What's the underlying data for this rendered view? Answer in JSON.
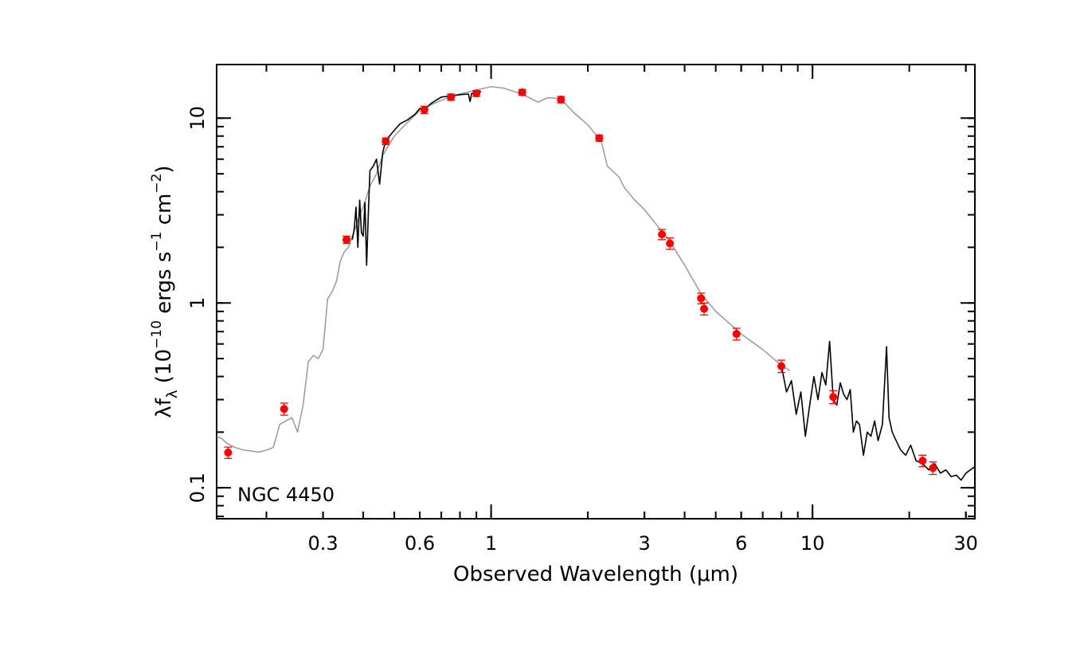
{
  "chart_data": {
    "type": "scatter",
    "title": "",
    "annotation": "NGC 4450",
    "xlabel": "Observed Wavelength (μm)",
    "ylabel": "λfλ (10⁻¹⁰ ergs s⁻¹ cm⁻²)",
    "ylabel_parts": {
      "lam": "λf",
      "sub": "λ",
      "open": " (10",
      "exp1": "−10",
      "mid": " ergs s",
      "exp2": "−1",
      "mid2": " cm",
      "exp3": "−2",
      "close": ")"
    },
    "xscale": "log",
    "yscale": "log",
    "xlim": [
      0.14,
      32
    ],
    "ylim": [
      0.068,
      19.5
    ],
    "x_ticks": [
      {
        "value": 0.3,
        "label": "0.3"
      },
      {
        "value": 0.6,
        "label": "0.6"
      },
      {
        "value": 1,
        "label": "1"
      },
      {
        "value": 3,
        "label": "3"
      },
      {
        "value": 6,
        "label": "6"
      },
      {
        "value": 10,
        "label": "10"
      },
      {
        "value": 30,
        "label": "30"
      }
    ],
    "y_ticks": [
      {
        "value": 0.1,
        "label": "0.1"
      },
      {
        "value": 1,
        "label": "1"
      },
      {
        "value": 10,
        "label": "10"
      }
    ],
    "grid": false,
    "colors": {
      "photometry": "#ff0000",
      "model": "#999999",
      "spectrum": "#000000"
    },
    "series": [
      {
        "kind": "photometry",
        "style": "points-with-errorbars",
        "points": [
          {
            "x": 0.152,
            "y": 0.155,
            "err": 0.011
          },
          {
            "x": 0.227,
            "y": 0.267,
            "err": 0.02
          },
          {
            "x": 0.355,
            "y": 2.2,
            "err": 0.1
          },
          {
            "x": 0.47,
            "y": 7.5,
            "err": 0.3
          },
          {
            "x": 0.62,
            "y": 11.1,
            "err": 0.5
          },
          {
            "x": 0.75,
            "y": 13.0,
            "err": 0.5
          },
          {
            "x": 0.9,
            "y": 13.6,
            "err": 0.5
          },
          {
            "x": 1.25,
            "y": 13.8,
            "err": 0.5
          },
          {
            "x": 1.65,
            "y": 12.6,
            "err": 0.5
          },
          {
            "x": 2.17,
            "y": 7.8,
            "err": 0.3
          },
          {
            "x": 3.4,
            "y": 2.35,
            "err": 0.15
          },
          {
            "x": 3.6,
            "y": 2.1,
            "err": 0.15
          },
          {
            "x": 4.5,
            "y": 1.06,
            "err": 0.07
          },
          {
            "x": 4.6,
            "y": 0.93,
            "err": 0.07
          },
          {
            "x": 5.8,
            "y": 0.68,
            "err": 0.05
          },
          {
            "x": 8.0,
            "y": 0.455,
            "err": 0.035
          },
          {
            "x": 11.6,
            "y": 0.31,
            "err": 0.025
          },
          {
            "x": 22.0,
            "y": 0.14,
            "err": 0.01
          },
          {
            "x": 23.7,
            "y": 0.128,
            "err": 0.01
          }
        ]
      },
      {
        "kind": "model",
        "style": "line",
        "points": [
          [
            0.14,
            0.19
          ],
          [
            0.145,
            0.185
          ],
          [
            0.15,
            0.175
          ],
          [
            0.16,
            0.165
          ],
          [
            0.17,
            0.16
          ],
          [
            0.18,
            0.158
          ],
          [
            0.19,
            0.156
          ],
          [
            0.2,
            0.16
          ],
          [
            0.21,
            0.165
          ],
          [
            0.22,
            0.22
          ],
          [
            0.23,
            0.23
          ],
          [
            0.24,
            0.24
          ],
          [
            0.25,
            0.2
          ],
          [
            0.26,
            0.28
          ],
          [
            0.27,
            0.48
          ],
          [
            0.28,
            0.52
          ],
          [
            0.29,
            0.5
          ],
          [
            0.3,
            0.56
          ],
          [
            0.31,
            1.05
          ],
          [
            0.32,
            1.15
          ],
          [
            0.33,
            1.3
          ],
          [
            0.34,
            1.7
          ],
          [
            0.35,
            1.9
          ],
          [
            0.36,
            2.0
          ],
          [
            0.37,
            2.3
          ],
          [
            0.38,
            2.6
          ],
          [
            0.39,
            3.0
          ],
          [
            0.4,
            3.3
          ],
          [
            0.42,
            4.3
          ],
          [
            0.44,
            5.0
          ],
          [
            0.46,
            6.3
          ],
          [
            0.5,
            8.0
          ],
          [
            0.55,
            9.5
          ],
          [
            0.6,
            11.0
          ],
          [
            0.65,
            11.8
          ],
          [
            0.7,
            12.5
          ],
          [
            0.8,
            13.5
          ],
          [
            0.9,
            14.2
          ],
          [
            1.0,
            14.8
          ],
          [
            1.1,
            14.5
          ],
          [
            1.2,
            13.8
          ],
          [
            1.3,
            13.0
          ],
          [
            1.4,
            12.2
          ],
          [
            1.5,
            12.9
          ],
          [
            1.6,
            12.8
          ],
          [
            1.7,
            12.0
          ],
          [
            1.8,
            10.8
          ],
          [
            2.0,
            9.2
          ],
          [
            2.2,
            7.5
          ],
          [
            2.3,
            5.5
          ],
          [
            2.5,
            4.8
          ],
          [
            2.6,
            4.2
          ],
          [
            2.8,
            3.6
          ],
          [
            3.0,
            3.2
          ],
          [
            3.3,
            2.6
          ],
          [
            3.6,
            2.15
          ],
          [
            4.0,
            1.6
          ],
          [
            4.5,
            1.12
          ],
          [
            5.0,
            0.9
          ],
          [
            6.0,
            0.68
          ],
          [
            7.0,
            0.56
          ],
          [
            8.0,
            0.46
          ],
          [
            8.5,
            0.43
          ]
        ]
      },
      {
        "kind": "spectrum",
        "style": "line",
        "points": [
          [
            0.37,
            2.2
          ],
          [
            0.375,
            2.5
          ],
          [
            0.38,
            3.3
          ],
          [
            0.385,
            2.0
          ],
          [
            0.39,
            3.6
          ],
          [
            0.395,
            2.4
          ],
          [
            0.4,
            2.3
          ],
          [
            0.405,
            3.5
          ],
          [
            0.41,
            1.6
          ],
          [
            0.415,
            3.0
          ],
          [
            0.42,
            5.2
          ],
          [
            0.43,
            5.5
          ],
          [
            0.44,
            6.0
          ],
          [
            0.45,
            4.4
          ],
          [
            0.46,
            6.5
          ],
          [
            0.47,
            7.6
          ],
          [
            0.48,
            7.9
          ],
          [
            0.5,
            8.6
          ],
          [
            0.52,
            9.3
          ],
          [
            0.55,
            9.8
          ],
          [
            0.58,
            10.5
          ],
          [
            0.6,
            11.3
          ],
          [
            0.62,
            11.1
          ],
          [
            0.65,
            12.0
          ],
          [
            0.7,
            13.0
          ],
          [
            0.75,
            13.2
          ],
          [
            0.8,
            13.4
          ],
          [
            0.85,
            13.5
          ],
          [
            0.86,
            12.3
          ],
          [
            0.87,
            13.6
          ],
          [
            0.9,
            13.8
          ],
          [
            0.93,
            13.9
          ],
          null,
          [
            8.0,
            0.46
          ],
          [
            8.3,
            0.33
          ],
          [
            8.6,
            0.38
          ],
          [
            8.9,
            0.25
          ],
          [
            9.2,
            0.33
          ],
          [
            9.5,
            0.19
          ],
          [
            9.8,
            0.28
          ],
          [
            10.1,
            0.4
          ],
          [
            10.4,
            0.3
          ],
          [
            10.7,
            0.42
          ],
          [
            11.0,
            0.36
          ],
          [
            11.3,
            0.62
          ],
          [
            11.6,
            0.3
          ],
          [
            11.9,
            0.28
          ],
          [
            12.2,
            0.37
          ],
          [
            12.5,
            0.32
          ],
          [
            12.8,
            0.3
          ],
          [
            13.1,
            0.34
          ],
          [
            13.4,
            0.2
          ],
          [
            13.7,
            0.23
          ],
          [
            14.0,
            0.22
          ],
          [
            14.4,
            0.15
          ],
          [
            14.8,
            0.2
          ],
          [
            15.2,
            0.19
          ],
          [
            15.6,
            0.23
          ],
          [
            16.0,
            0.18
          ],
          [
            16.5,
            0.22
          ],
          [
            17.0,
            0.58
          ],
          [
            17.3,
            0.24
          ],
          [
            17.7,
            0.2
          ],
          [
            18.2,
            0.18
          ],
          [
            18.8,
            0.16
          ],
          [
            19.5,
            0.15
          ],
          [
            20.2,
            0.17
          ],
          [
            21.0,
            0.14
          ],
          [
            22.0,
            0.135
          ],
          [
            23.0,
            0.125
          ],
          [
            24.0,
            0.135
          ],
          [
            25.0,
            0.12
          ],
          [
            26.0,
            0.125
          ],
          [
            27.0,
            0.115
          ],
          [
            28.0,
            0.117
          ],
          [
            29.0,
            0.11
          ],
          [
            30.0,
            0.12
          ],
          [
            31.0,
            0.125
          ],
          [
            32.0,
            0.13
          ]
        ]
      }
    ]
  }
}
